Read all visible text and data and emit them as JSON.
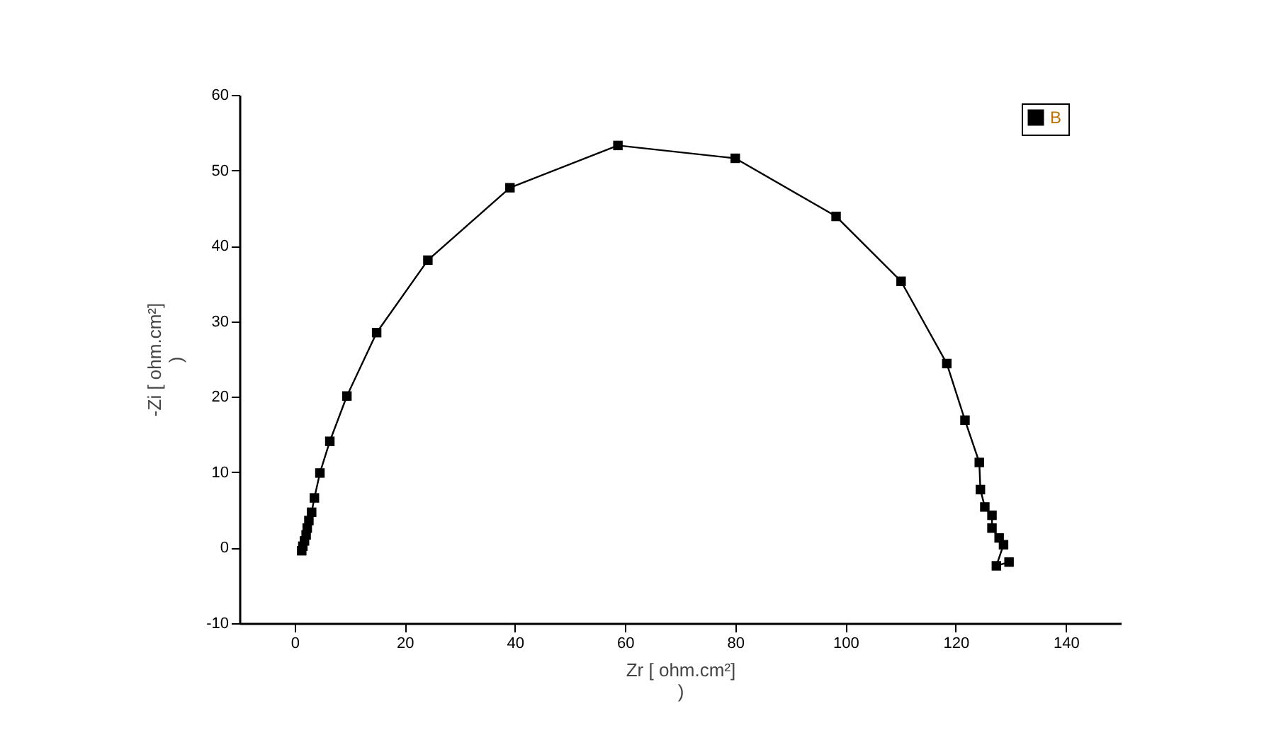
{
  "chart_data": {
    "type": "line",
    "xlabel": "Zr [ ohm.cm²]\n)",
    "ylabel": "-Zi [ ohm.cm²]\n)",
    "x": [
      1.3,
      1.5,
      1.8,
      2.1,
      2.3,
      2.6,
      3.1,
      3.6,
      4.6,
      6.4,
      9.5,
      14.9,
      24.2,
      39.1,
      58.7,
      80.0,
      98.3,
      110.1,
      118.4,
      121.7,
      124.3,
      124.5,
      125.3,
      126.6,
      126.6,
      127.9,
      128.7,
      127.4,
      129.7
    ],
    "series": [
      {
        "name": "B",
        "color": "#000000",
        "values": [
          -0.4,
          0.2,
          0.9,
          1.7,
          2.6,
          3.6,
          4.7,
          6.6,
          9.9,
          14.1,
          20.1,
          28.5,
          38.1,
          47.7,
          53.3,
          51.6,
          43.9,
          35.3,
          24.4,
          16.9,
          11.3,
          7.7,
          5.4,
          4.3,
          2.6,
          1.3,
          0.4,
          -2.4,
          -1.9
        ]
      }
    ],
    "xlim": [
      -10,
      150
    ],
    "ylim": [
      -10,
      60
    ],
    "xticks": [
      0,
      20,
      40,
      60,
      80,
      100,
      120,
      140
    ],
    "yticks": [
      -10,
      0,
      10,
      20,
      30,
      40,
      50,
      60
    ],
    "grid": false,
    "legend": "top right",
    "marker": "square",
    "line_style": "solid"
  }
}
